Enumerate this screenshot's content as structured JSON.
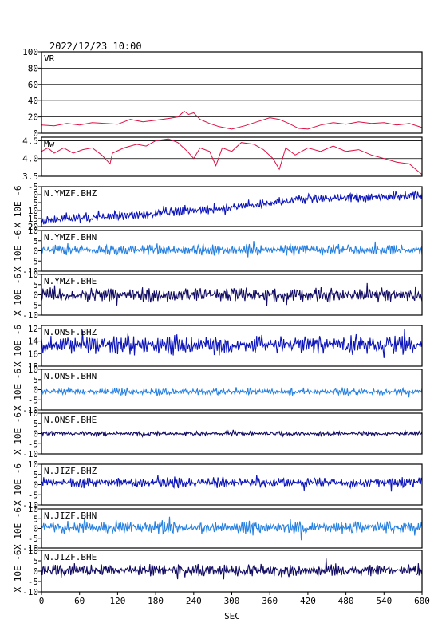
{
  "header": {
    "datetime": "2022/12/23  10:00"
  },
  "colors": {
    "vr": "#dd1144",
    "mw": "#dd1144",
    "dark_blue": "#0c14b8",
    "light_blue": "#2680e0",
    "navy": "#100a60",
    "axis": "#000000",
    "grid": "#000000"
  },
  "chart_data": {
    "type": "line",
    "x_axis": {
      "label": "SEC",
      "range": [
        0,
        600
      ],
      "ticks": [
        0,
        60,
        120,
        180,
        240,
        300,
        360,
        420,
        480,
        540,
        600
      ]
    },
    "panels": [
      {
        "label": "VR",
        "ylim": [
          0,
          100
        ],
        "ticks": [
          "100",
          "80",
          "60",
          "40",
          "20",
          "0"
        ],
        "grid": true,
        "color_key": "vr",
        "series": [
          {
            "x": 0,
            "y": 10
          },
          {
            "x": 20,
            "y": 9
          },
          {
            "x": 40,
            "y": 12
          },
          {
            "x": 60,
            "y": 10
          },
          {
            "x": 80,
            "y": 13
          },
          {
            "x": 100,
            "y": 12
          },
          {
            "x": 120,
            "y": 11
          },
          {
            "x": 140,
            "y": 17
          },
          {
            "x": 160,
            "y": 14
          },
          {
            "x": 180,
            "y": 16
          },
          {
            "x": 200,
            "y": 18
          },
          {
            "x": 215,
            "y": 20
          },
          {
            "x": 225,
            "y": 27
          },
          {
            "x": 232,
            "y": 23
          },
          {
            "x": 240,
            "y": 25
          },
          {
            "x": 250,
            "y": 17
          },
          {
            "x": 265,
            "y": 12
          },
          {
            "x": 280,
            "y": 8
          },
          {
            "x": 300,
            "y": 5
          },
          {
            "x": 320,
            "y": 9
          },
          {
            "x": 340,
            "y": 14
          },
          {
            "x": 360,
            "y": 19
          },
          {
            "x": 375,
            "y": 17
          },
          {
            "x": 390,
            "y": 12
          },
          {
            "x": 405,
            "y": 6
          },
          {
            "x": 420,
            "y": 5
          },
          {
            "x": 440,
            "y": 10
          },
          {
            "x": 460,
            "y": 13
          },
          {
            "x": 480,
            "y": 11
          },
          {
            "x": 500,
            "y": 14
          },
          {
            "x": 520,
            "y": 12
          },
          {
            "x": 540,
            "y": 13
          },
          {
            "x": 560,
            "y": 10
          },
          {
            "x": 580,
            "y": 12
          },
          {
            "x": 600,
            "y": 7
          }
        ]
      },
      {
        "label": "Mw",
        "ylim": [
          3.5,
          4.6
        ],
        "ticks": [
          "4.5",
          "4.0",
          "3.5"
        ],
        "grid": true,
        "color_key": "mw",
        "series": [
          {
            "x": 0,
            "y": 4.2
          },
          {
            "x": 10,
            "y": 4.3
          },
          {
            "x": 20,
            "y": 4.15
          },
          {
            "x": 35,
            "y": 4.3
          },
          {
            "x": 50,
            "y": 4.15
          },
          {
            "x": 65,
            "y": 4.25
          },
          {
            "x": 80,
            "y": 4.3
          },
          {
            "x": 95,
            "y": 4.1
          },
          {
            "x": 108,
            "y": 3.85
          },
          {
            "x": 112,
            "y": 4.15
          },
          {
            "x": 130,
            "y": 4.3
          },
          {
            "x": 150,
            "y": 4.4
          },
          {
            "x": 165,
            "y": 4.35
          },
          {
            "x": 180,
            "y": 4.5
          },
          {
            "x": 200,
            "y": 4.55
          },
          {
            "x": 215,
            "y": 4.45
          },
          {
            "x": 230,
            "y": 4.2
          },
          {
            "x": 240,
            "y": 4.0
          },
          {
            "x": 250,
            "y": 4.3
          },
          {
            "x": 265,
            "y": 4.2
          },
          {
            "x": 275,
            "y": 3.8
          },
          {
            "x": 285,
            "y": 4.3
          },
          {
            "x": 300,
            "y": 4.2
          },
          {
            "x": 315,
            "y": 4.45
          },
          {
            "x": 335,
            "y": 4.4
          },
          {
            "x": 350,
            "y": 4.25
          },
          {
            "x": 365,
            "y": 4.0
          },
          {
            "x": 375,
            "y": 3.7
          },
          {
            "x": 385,
            "y": 4.3
          },
          {
            "x": 400,
            "y": 4.1
          },
          {
            "x": 420,
            "y": 4.3
          },
          {
            "x": 440,
            "y": 4.2
          },
          {
            "x": 460,
            "y": 4.35
          },
          {
            "x": 480,
            "y": 4.2
          },
          {
            "x": 500,
            "y": 4.25
          },
          {
            "x": 520,
            "y": 4.1
          },
          {
            "x": 540,
            "y": 4.0
          },
          {
            "x": 560,
            "y": 3.9
          },
          {
            "x": 580,
            "y": 3.85
          },
          {
            "x": 590,
            "y": 3.7
          },
          {
            "x": 600,
            "y": 3.55
          }
        ]
      },
      {
        "label": "N.YMZF.BHZ",
        "ylabel": "X 10E -6",
        "ylim": [
          20,
          -5
        ],
        "ticks": [
          "-5",
          "0",
          "5",
          "10",
          "15",
          "20"
        ],
        "color_key": "dark_blue",
        "waveform": {
          "amp": 2.6,
          "drift": [
            [
              0,
              16
            ],
            [
              140,
              13
            ],
            [
              300,
              8
            ],
            [
              420,
              2.5
            ],
            [
              600,
              0.5
            ]
          ]
        }
      },
      {
        "label": "N.YMZF.BHN",
        "ylabel": "X 10E -6",
        "ylim": [
          -10,
          10
        ],
        "ticks": [
          "10",
          "5",
          "0",
          "-5",
          "-10"
        ],
        "color_key": "light_blue",
        "waveform": {
          "amp": 2.3,
          "drift": [
            [
              0,
              0.5
            ],
            [
              600,
              0.5
            ]
          ]
        }
      },
      {
        "label": "N.YMZF.BHE",
        "ylabel": "X 10E -6",
        "ylim": [
          -10,
          10
        ],
        "ticks": [
          "10",
          "5",
          "0",
          "-5",
          "-10"
        ],
        "color_key": "navy",
        "waveform": {
          "amp": 3.0,
          "drift": [
            [
              0,
              0
            ],
            [
              600,
              0
            ]
          ]
        }
      },
      {
        "label": "N.ONSF.BHZ",
        "ylabel": "X 10E -6",
        "ylim": [
          18,
          11.5
        ],
        "ticks": [
          "12",
          "14",
          "16",
          "18"
        ],
        "color_key": "dark_blue",
        "waveform": {
          "amp": 1.3,
          "drift": [
            [
              0,
              14.6
            ],
            [
              600,
              14.6
            ]
          ]
        }
      },
      {
        "label": "N.ONSF.BHN",
        "ylabel": "X 10E -6",
        "ylim": [
          -10,
          10
        ],
        "ticks": [
          "10",
          "5",
          "0",
          "-5",
          "-10"
        ],
        "color_key": "light_blue",
        "waveform": {
          "amp": 1.5,
          "drift": [
            [
              0,
              -1
            ],
            [
              600,
              -1
            ]
          ]
        }
      },
      {
        "label": "N.ONSF.BHE",
        "ylabel": "X 10E -6",
        "ylim": [
          -10,
          10
        ],
        "ticks": [
          "10",
          "5",
          "0",
          "-5",
          "-10"
        ],
        "color_key": "navy",
        "waveform": {
          "amp": 0.9,
          "drift": [
            [
              0,
              0
            ],
            [
              600,
              0
            ]
          ]
        }
      },
      {
        "label": "N.JIZF.BHZ",
        "ylabel": "X 10E -6",
        "ylim": [
          -10,
          10
        ],
        "ticks": [
          "10",
          "5",
          "0",
          "-5",
          "-10"
        ],
        "color_key": "dark_blue",
        "waveform": {
          "amp": 2.2,
          "drift": [
            [
              0,
              1
            ],
            [
              600,
              1
            ]
          ]
        }
      },
      {
        "label": "N.JIZF.BHN",
        "ylabel": "X 10E -6",
        "ylim": [
          -10,
          10
        ],
        "ticks": [
          "10",
          "5",
          "0",
          "-5",
          "-10"
        ],
        "color_key": "light_blue",
        "waveform": {
          "amp": 2.8,
          "drift": [
            [
              0,
              0.5
            ],
            [
              600,
              0.5
            ]
          ]
        }
      },
      {
        "label": "N.JIZF.BHE",
        "ylabel": "X 10E -6",
        "ylim": [
          -10,
          10
        ],
        "ticks": [
          "10",
          "5",
          "0",
          "-5",
          "-10"
        ],
        "color_key": "navy",
        "waveform": {
          "amp": 2.6,
          "drift": [
            [
              0,
              0.5
            ],
            [
              600,
              0.5
            ]
          ]
        }
      }
    ]
  }
}
